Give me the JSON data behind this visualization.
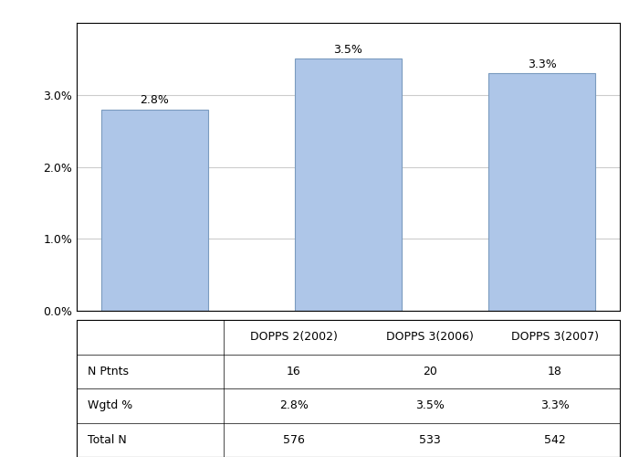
{
  "categories": [
    "DOPPS 2(2002)",
    "DOPPS 3(2006)",
    "DOPPS 3(2007)"
  ],
  "values": [
    2.8,
    3.5,
    3.3
  ],
  "bar_color": "#aec6e8",
  "bar_edge_color": "#7a9bbf",
  "value_labels": [
    "2.8%",
    "3.5%",
    "3.3%"
  ],
  "ylim": [
    0,
    4.0
  ],
  "yticks": [
    0.0,
    1.0,
    2.0,
    3.0
  ],
  "ytick_labels": [
    "0.0%",
    "1.0%",
    "2.0%",
    "3.0%"
  ],
  "table_rows": [
    "N Ptnts",
    "Wgtd %",
    "Total N"
  ],
  "table_data": [
    [
      "16",
      "20",
      "18"
    ],
    [
      "2.8%",
      "3.5%",
      "3.3%"
    ],
    [
      "576",
      "533",
      "542"
    ]
  ],
  "background_color": "#ffffff",
  "grid_color": "#cccccc",
  "text_color": "#000000",
  "bar_width": 0.55,
  "font_size": 9,
  "label_font_size": 9
}
